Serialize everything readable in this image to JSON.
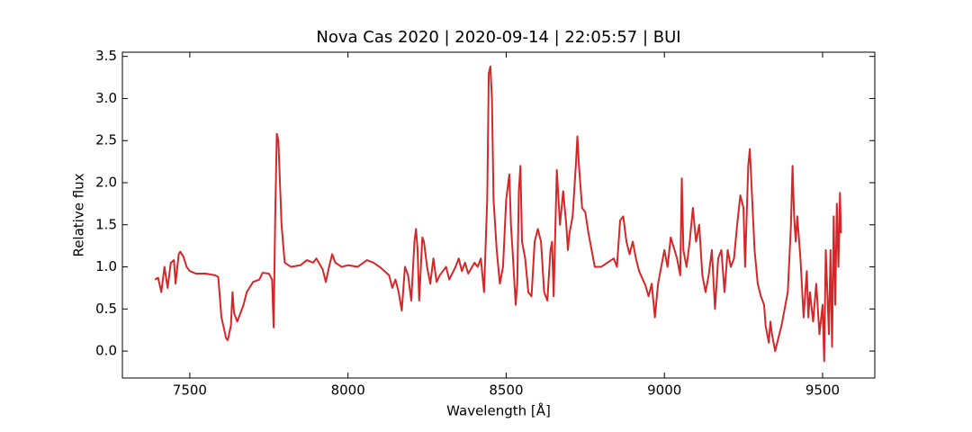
{
  "chart_data": {
    "type": "line",
    "title": "Nova Cas 2020 | 2020-09-14 | 22:05:57 | BUI",
    "xlabel": "Wavelength [Å]",
    "ylabel": "Relative flux",
    "xlim": [
      7287,
      9665
    ],
    "ylim": [
      -0.32,
      3.55
    ],
    "xticks": [
      7500,
      8000,
      8500,
      9000,
      9500
    ],
    "yticks": [
      {
        "value": 0,
        "label": "0.0"
      },
      0.5,
      {
        "value": 1,
        "label": "1.0"
      },
      1.5,
      {
        "value": 2,
        "label": "2.0"
      },
      2.5,
      {
        "value": 3,
        "label": "3.0"
      },
      3.5
    ],
    "series": [
      {
        "color": "#d62728",
        "x": [
          7390,
          7400,
          7410,
          7420,
          7430,
          7440,
          7450,
          7455,
          7465,
          7470,
          7480,
          7490,
          7500,
          7520,
          7550,
          7580,
          7590,
          7600,
          7615,
          7620,
          7630,
          7635,
          7640,
          7650,
          7670,
          7680,
          7700,
          7720,
          7730,
          7750,
          7760,
          7765,
          7770,
          7775,
          7780,
          7790,
          7800,
          7820,
          7850,
          7870,
          7890,
          7900,
          7920,
          7930,
          7940,
          7950,
          7960,
          7980,
          8000,
          8030,
          8060,
          8080,
          8100,
          8130,
          8140,
          8150,
          8160,
          8170,
          8180,
          8190,
          8200,
          8210,
          8215,
          8220,
          8225,
          8235,
          8240,
          8250,
          8260,
          8270,
          8280,
          8290,
          8300,
          8310,
          8320,
          8340,
          8350,
          8360,
          8370,
          8380,
          8400,
          8410,
          8420,
          8430,
          8440,
          8445,
          8450,
          8455,
          8460,
          8470,
          8480,
          8490,
          8500,
          8510,
          8515,
          8520,
          8530,
          8535,
          8540,
          8545,
          8550,
          8560,
          8570,
          8580,
          8590,
          8600,
          8610,
          8620,
          8630,
          8640,
          8645,
          8650,
          8660,
          8670,
          8680,
          8690,
          8695,
          8700,
          8710,
          8720,
          8725,
          8730,
          8740,
          8750,
          8760,
          8770,
          8780,
          8800,
          8820,
          8840,
          8850,
          8860,
          8870,
          8880,
          8890,
          8900,
          8910,
          8920,
          8940,
          8950,
          8960,
          8970,
          8980,
          8990,
          9000,
          9010,
          9020,
          9040,
          9050,
          9055,
          9060,
          9070,
          9080,
          9090,
          9100,
          9110,
          9120,
          9130,
          9140,
          9150,
          9160,
          9170,
          9180,
          9190,
          9200,
          9210,
          9220,
          9230,
          9240,
          9250,
          9255,
          9260,
          9265,
          9270,
          9275,
          9285,
          9295,
          9305,
          9315,
          9320,
          9330,
          9335,
          9340,
          9350,
          9360,
          9370,
          9380,
          9390,
          9400,
          9405,
          9410,
          9415,
          9420,
          9430,
          9440,
          9450,
          9455,
          9460,
          9470,
          9480,
          9490,
          9500,
          9505,
          9510,
          9520,
          9525,
          9530,
          9535,
          9540,
          9545,
          9550,
          9555,
          9558
        ],
        "values": [
          0.85,
          0.87,
          0.7,
          1.0,
          0.75,
          1.05,
          1.08,
          0.8,
          1.15,
          1.18,
          1.12,
          1.0,
          0.95,
          0.92,
          0.92,
          0.9,
          0.88,
          0.4,
          0.15,
          0.13,
          0.3,
          0.7,
          0.45,
          0.35,
          0.55,
          0.7,
          0.82,
          0.85,
          0.93,
          0.92,
          0.85,
          0.28,
          1.6,
          2.58,
          2.5,
          1.5,
          1.05,
          1.0,
          1.02,
          1.08,
          1.05,
          1.1,
          0.97,
          0.82,
          1.0,
          1.15,
          1.05,
          1.0,
          1.02,
          1.0,
          1.08,
          1.05,
          1.0,
          0.9,
          0.75,
          0.85,
          0.7,
          0.48,
          1.0,
          0.9,
          0.6,
          1.3,
          1.45,
          1.2,
          0.6,
          1.35,
          1.3,
          1.0,
          0.8,
          1.1,
          0.82,
          0.9,
          0.95,
          1.0,
          0.85,
          1.0,
          1.1,
          0.95,
          1.05,
          0.92,
          1.05,
          1.0,
          1.1,
          0.7,
          1.8,
          3.3,
          3.38,
          3.0,
          1.8,
          1.2,
          0.8,
          1.0,
          1.8,
          2.1,
          1.5,
          1.2,
          0.55,
          0.8,
          1.9,
          2.2,
          1.3,
          1.1,
          0.7,
          0.65,
          1.3,
          1.45,
          1.3,
          0.7,
          0.6,
          1.2,
          1.3,
          0.65,
          2.15,
          1.5,
          1.9,
          1.5,
          1.2,
          1.4,
          1.6,
          2.2,
          2.55,
          2.2,
          1.7,
          1.65,
          1.4,
          1.2,
          1.0,
          1.0,
          1.05,
          1.1,
          1.0,
          1.55,
          1.6,
          1.3,
          1.15,
          1.3,
          1.1,
          0.95,
          0.78,
          0.65,
          0.8,
          0.4,
          0.8,
          1.0,
          1.2,
          1.0,
          1.35,
          1.1,
          0.9,
          2.05,
          1.2,
          1.0,
          1.3,
          1.7,
          1.3,
          1.5,
          0.9,
          0.7,
          0.9,
          1.2,
          0.5,
          1.1,
          1.2,
          0.7,
          1.2,
          1.0,
          1.1,
          1.5,
          1.85,
          1.7,
          1.0,
          1.6,
          2.2,
          2.4,
          2.0,
          1.2,
          0.8,
          0.65,
          0.55,
          0.3,
          0.1,
          0.35,
          0.2,
          0.0,
          0.15,
          0.3,
          0.5,
          0.7,
          1.5,
          2.2,
          1.6,
          1.3,
          1.6,
          1.1,
          0.4,
          0.95,
          0.4,
          0.7,
          0.35,
          0.8,
          0.2,
          0.55,
          -0.12,
          1.2,
          0.2,
          1.2,
          0.05,
          1.6,
          0.55,
          1.75,
          1.0,
          1.88,
          1.4
        ]
      }
    ]
  }
}
